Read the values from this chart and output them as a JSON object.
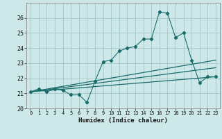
{
  "xlabel": "Humidex (Indice chaleur)",
  "bg_color": "#cce8e8",
  "grid_color": "#aacccc",
  "line_color": "#1a6b6b",
  "xlim": [
    -0.5,
    23.5
  ],
  "ylim": [
    20,
    27
  ],
  "yticks": [
    20,
    21,
    22,
    23,
    24,
    25,
    26
  ],
  "xticks": [
    0,
    1,
    2,
    3,
    4,
    5,
    6,
    7,
    8,
    9,
    10,
    11,
    12,
    13,
    14,
    15,
    16,
    17,
    18,
    19,
    20,
    21,
    22,
    23
  ],
  "series1_x": [
    0,
    1,
    2,
    3,
    4,
    5,
    6,
    7,
    8,
    9,
    10,
    11,
    12,
    13,
    14,
    15,
    16,
    17,
    18,
    19,
    20,
    21,
    22,
    23
  ],
  "series1_y": [
    21.1,
    21.3,
    21.1,
    21.3,
    21.2,
    20.9,
    20.9,
    20.4,
    21.8,
    23.1,
    23.2,
    23.8,
    24.0,
    24.1,
    24.6,
    24.6,
    26.4,
    26.3,
    24.7,
    25.0,
    23.2,
    21.7,
    22.1,
    22.1
  ],
  "series2_x": [
    0,
    23
  ],
  "series2_y": [
    21.1,
    23.2
  ],
  "series3_x": [
    0,
    23
  ],
  "series3_y": [
    21.1,
    22.7
  ],
  "series4_x": [
    0,
    23
  ],
  "series4_y": [
    21.1,
    22.1
  ]
}
